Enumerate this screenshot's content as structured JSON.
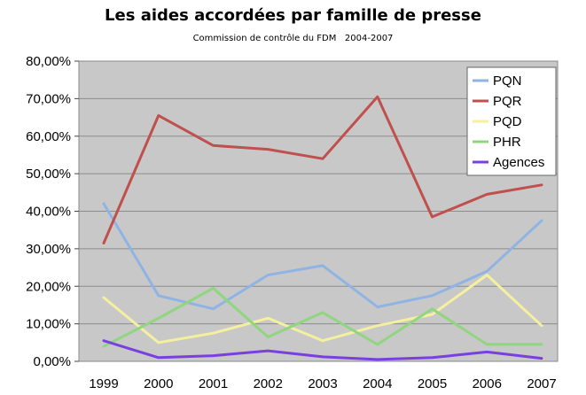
{
  "chart_data": {
    "type": "line",
    "title": "Les aides accordées par famille de presse",
    "subtitle": "Commission de contrôle du FDM   2004-2007",
    "categories": [
      "1999",
      "2000",
      "2001",
      "2002",
      "2003",
      "2004",
      "2005",
      "2006",
      "2007"
    ],
    "ylim": [
      0,
      80
    ],
    "yticks": [
      "0,00%",
      "10,00%",
      "20,00%",
      "30,00%",
      "40,00%",
      "50,00%",
      "60,00%",
      "70,00%",
      "80,00%"
    ],
    "grid": true,
    "legend_position": "top-right",
    "series": [
      {
        "name": "PQN",
        "color": "#8fb4e3",
        "values": [
          42,
          17.5,
          14,
          23,
          25.5,
          14.5,
          17.5,
          24,
          37.5
        ]
      },
      {
        "name": "PQR",
        "color": "#c0504d",
        "values": [
          31.5,
          65.5,
          57.5,
          56.5,
          54,
          70.5,
          38.5,
          44.5,
          47
        ]
      },
      {
        "name": "PQD",
        "color": "#f4f0a0",
        "values": [
          17,
          5,
          7.5,
          11.5,
          5.5,
          9.5,
          12.5,
          23,
          9.5
        ]
      },
      {
        "name": "PHR",
        "color": "#8fd67e",
        "values": [
          4,
          11.5,
          19.5,
          6.5,
          13,
          4.5,
          14,
          4.5,
          4.5
        ]
      },
      {
        "name": "Agences",
        "color": "#7a3fe0",
        "values": [
          5.5,
          1,
          1.5,
          2.8,
          1.2,
          0.5,
          1,
          2.5,
          0.8
        ]
      }
    ]
  }
}
